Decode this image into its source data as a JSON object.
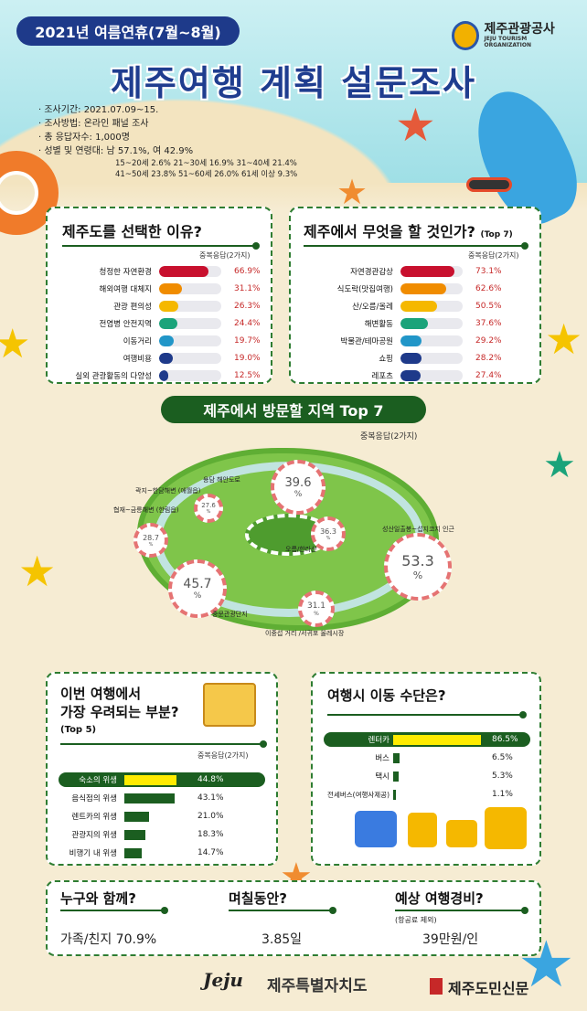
{
  "header": {
    "period": "2021년 여름연휴(7월~8월)",
    "org_name": "제주관광공사",
    "org_sub": "JEJU TOURISM ORGANIZATION",
    "title": "제주여행 계획 설문조사"
  },
  "meta": {
    "line1": "· 조사기간: 2021.07.09~15.",
    "line2": "· 조사방법: 온라인 패널 조사",
    "line3": "· 총 응답자수: 1,000명",
    "line4": "· 성별 및 연령대: 남 57.1%, 여 42.9%",
    "ages1": "15~20세 2.6% 21~30세 16.9% 31~40세 21.4%",
    "ages2": "41~50세 23.8% 51~60세 26.0% 61세 이상 9.3%"
  },
  "reasons": {
    "title": "제주도를 선택한 이유?",
    "note": "중복응답(2가지)",
    "items": [
      {
        "label": "청정한 자연환경",
        "value": "66.9%"
      },
      {
        "label": "해외여행 대체지",
        "value": "31.1%"
      },
      {
        "label": "관광 편의성",
        "value": "26.3%"
      },
      {
        "label": "전염병 안전지역",
        "value": "24.4%"
      },
      {
        "label": "이동거리",
        "value": "19.7%"
      },
      {
        "label": "여행비용",
        "value": "19.0%"
      },
      {
        "label": "실외 관광활동의 다양성",
        "value": "12.5%"
      }
    ]
  },
  "activities": {
    "title": "제주에서 무엇을 할 것인가?",
    "title_suffix": "(Top 7)",
    "note": "중복응답(2가지)",
    "items": [
      {
        "label": "자연경관감상",
        "value": "73.1%"
      },
      {
        "label": "식도락(맛집여행)",
        "value": "62.6%"
      },
      {
        "label": "산/오름/올레",
        "value": "50.5%"
      },
      {
        "label": "해변활동",
        "value": "37.6%"
      },
      {
        "label": "박물관/테마공원",
        "value": "29.2%"
      },
      {
        "label": "쇼핑",
        "value": "28.2%"
      },
      {
        "label": "레포츠",
        "value": "27.4%"
      }
    ]
  },
  "regions": {
    "title": "제주에서 방문할 지역 Top 7",
    "note": "중복응답(2가지)",
    "unit": "%",
    "items": [
      {
        "label": "용담 해안도로",
        "value": "39.6"
      },
      {
        "label": "곽지~한담해변 (애월읍)",
        "value": "27.6"
      },
      {
        "label": "협재~금릉해변 (한림읍)",
        "value": "28.7"
      },
      {
        "label": "오름/한라산",
        "value": "36.3"
      },
      {
        "label": "성산일출봉~섭지코지 인근",
        "value": "53.3"
      },
      {
        "label": "중문관광단지",
        "value": "45.7"
      },
      {
        "label": "이중섭 거리 /서귀포 올레시장",
        "value": "31.1"
      }
    ]
  },
  "concerns": {
    "title1": "이번 여행에서",
    "title2": "가장 우려되는 부분?",
    "suffix": "(Top 5)",
    "note": "중복응답(2가지)",
    "items": [
      {
        "label": "숙소의 위생",
        "value": "44.8%"
      },
      {
        "label": "음식점의 위생",
        "value": "43.1%"
      },
      {
        "label": "렌트카의 위생",
        "value": "21.0%"
      },
      {
        "label": "관광지의 위생",
        "value": "18.3%"
      },
      {
        "label": "비행기 내 위생",
        "value": "14.7%"
      }
    ]
  },
  "transport": {
    "title": "여행시 이동 수단은?",
    "items": [
      {
        "label": "렌터카",
        "value": "86.5%"
      },
      {
        "label": "버스",
        "value": "6.5%"
      },
      {
        "label": "택시",
        "value": "5.3%"
      },
      {
        "label": "전세버스(여행사제공)",
        "value": "1.1%"
      }
    ]
  },
  "summary": {
    "with_title": "누구와 함께?",
    "with_value": "가족/친지 70.9%",
    "days_title": "며칠동안?",
    "days_value": "3.85일",
    "cost_title": "예상 여행경비?",
    "cost_note": "(항공료 제외)",
    "cost_value": "39만원/인"
  },
  "footer": {
    "jeju_logo": "Jeju",
    "province": "제주특별자치도",
    "newspaper": "제주도민신문"
  },
  "chart_data": [
    {
      "type": "bar",
      "title": "제주도를 선택한 이유?",
      "categories": [
        "청정한 자연환경",
        "해외여행 대체지",
        "관광 편의성",
        "전염병 안전지역",
        "이동거리",
        "여행비용",
        "실외 관광활동의 다양성"
      ],
      "values": [
        66.9,
        31.1,
        26.3,
        24.4,
        19.7,
        19.0,
        12.5
      ]
    },
    {
      "type": "bar",
      "title": "제주에서 무엇을 할 것인가? (Top 7)",
      "categories": [
        "자연경관감상",
        "식도락(맛집여행)",
        "산/오름/올레",
        "해변활동",
        "박물관/테마공원",
        "쇼핑",
        "레포츠"
      ],
      "values": [
        73.1,
        62.6,
        50.5,
        37.6,
        29.2,
        28.2,
        27.4
      ]
    },
    {
      "type": "bar",
      "title": "이번 여행에서 가장 우려되는 부분? (Top 5)",
      "categories": [
        "숙소의 위생",
        "음식점의 위생",
        "렌트카의 위생",
        "관광지의 위생",
        "비행기 내 위생"
      ],
      "values": [
        44.8,
        43.1,
        21.0,
        18.3,
        14.7
      ]
    },
    {
      "type": "bar",
      "title": "여행시 이동 수단은?",
      "categories": [
        "렌터카",
        "버스",
        "택시",
        "전세버스(여행사제공)"
      ],
      "values": [
        86.5,
        6.5,
        5.3,
        1.1
      ]
    }
  ],
  "colors": {
    "reason_bars": [
      "#c8102e",
      "#f08c00",
      "#f5b800",
      "#1aa37a",
      "#2196c8",
      "#1e3a8a",
      "#1e3a8a"
    ],
    "activity_bars": [
      "#c8102e",
      "#f08c00",
      "#f5b800",
      "#1aa37a",
      "#2196c8",
      "#1e3a8a",
      "#1e3a8a"
    ],
    "concern_bar": "#1b5e20",
    "highlight": "#ffec00"
  }
}
